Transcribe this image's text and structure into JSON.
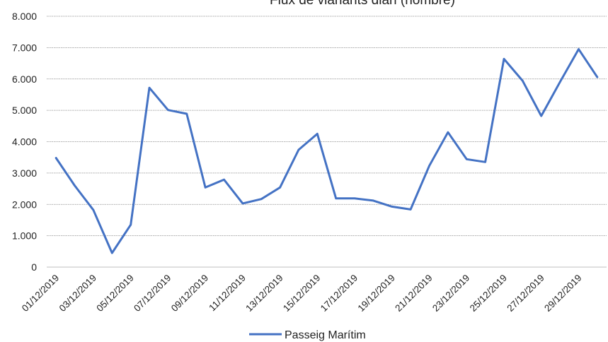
{
  "chart_data": {
    "type": "line",
    "title": "Flux de vianants diari (nombre)",
    "xlabel": "",
    "ylabel": "",
    "ylim": [
      0,
      8000
    ],
    "yticks": [
      "0",
      "1.000",
      "2.000",
      "3.000",
      "4.000",
      "5.000",
      "6.000",
      "7.000",
      "8.000"
    ],
    "ytick_values": [
      0,
      1000,
      2000,
      3000,
      4000,
      5000,
      6000,
      7000,
      8000
    ],
    "grid": "horizontal",
    "legend_position": "bottom",
    "categories": [
      "01/12/2019",
      "02/12/2019",
      "03/12/2019",
      "04/12/2019",
      "05/12/2019",
      "06/12/2019",
      "07/12/2019",
      "08/12/2019",
      "09/12/2019",
      "10/12/2019",
      "11/12/2019",
      "12/12/2019",
      "13/12/2019",
      "14/12/2019",
      "15/12/2019",
      "16/12/2019",
      "17/12/2019",
      "18/12/2019",
      "19/12/2019",
      "20/12/2019",
      "21/12/2019",
      "22/12/2019",
      "23/12/2019",
      "24/12/2019",
      "25/12/2019",
      "26/12/2019",
      "27/12/2019",
      "28/12/2019",
      "29/12/2019",
      "30/12/2019"
    ],
    "xtick_labels": [
      "01/12/2019",
      "03/12/2019",
      "05/12/2019",
      "07/12/2019",
      "09/12/2019",
      "11/12/2019",
      "13/12/2019",
      "15/12/2019",
      "17/12/2019",
      "19/12/2019",
      "21/12/2019",
      "23/12/2019",
      "25/12/2019",
      "27/12/2019",
      "29/12/2019"
    ],
    "series": [
      {
        "name": "Passeig Marítim",
        "color": "#4472C4",
        "values": [
          3480,
          2600,
          1820,
          450,
          1350,
          5720,
          5010,
          4890,
          2540,
          2790,
          2030,
          2170,
          2540,
          3740,
          4250,
          2190,
          2190,
          2120,
          1930,
          1840,
          3230,
          4300,
          3440,
          3350,
          6640,
          5940,
          4820,
          5900,
          6950,
          6060
        ]
      }
    ]
  }
}
